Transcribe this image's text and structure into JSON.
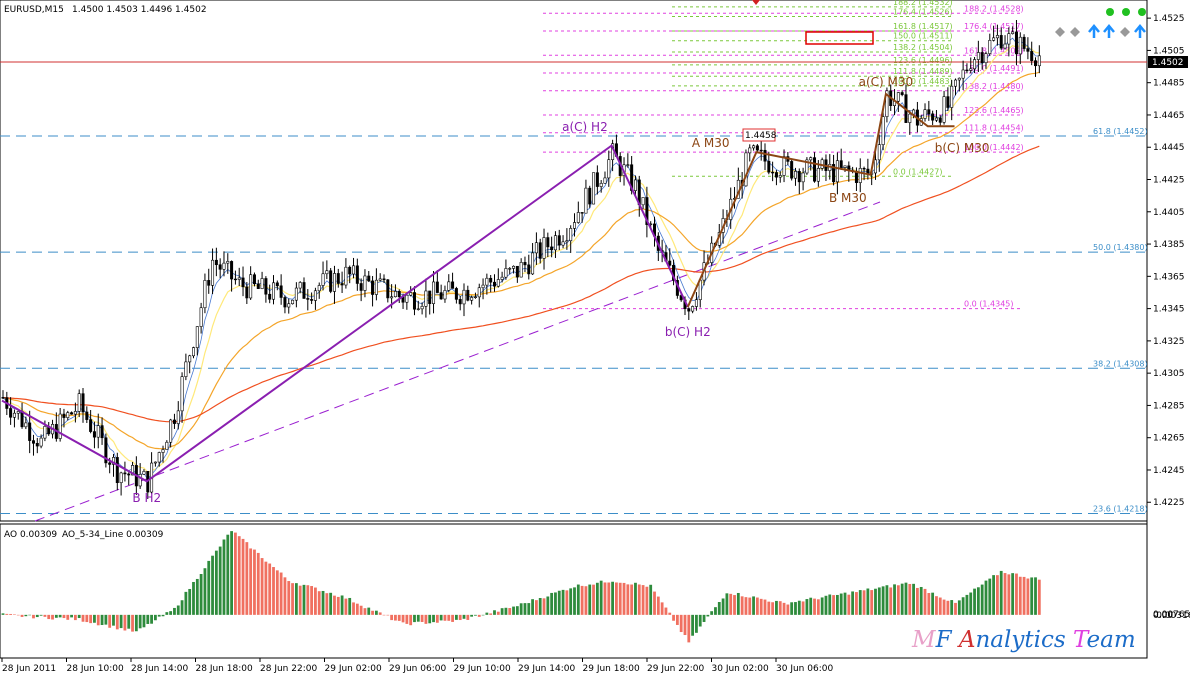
{
  "header": {
    "symbol_tf": "EURUSD,M15",
    "ohlc": "1.4500 1.4503 1.4496 1.4502",
    "ao_label": "AO 0.00309",
    "ao_line_label": "AO_5-34_Line 0.00309"
  },
  "brand": {
    "M": "M",
    "F": "F ",
    "A": "A",
    "nalytics": "nalytics ",
    "T": "T",
    "eam": "eam"
  },
  "colors": {
    "bull": "#2e8b3c",
    "bear": "#f07060",
    "fib_magenta": "#e040e0",
    "fib_green": "#7cc83c",
    "fib_blue": "#3c8ec8",
    "wave_h2": "#8a1fb0",
    "wave_m30": "#8b4513",
    "ma_fast": "#ffe97a",
    "ma_mid": "#f4a52a",
    "ma_slow": "#f05020",
    "price_line": "#d03030"
  },
  "current_price": "1.4502",
  "chart_data": {
    "type": "candlestick",
    "symbol": "EURUSD",
    "timeframe": "M15",
    "ylim": [
      1.4214,
      1.4535
    ],
    "y_ticks": [
      "1.4525",
      "1.4505",
      "1.4485",
      "1.4465",
      "1.4445",
      "1.4425",
      "1.4405",
      "1.4385",
      "1.4365",
      "1.4345",
      "1.4325",
      "1.4305",
      "1.4285",
      "1.4265",
      "1.4245",
      "1.4225"
    ],
    "x_ticks": [
      "28 Jun 2011",
      "28 Jun 10:00",
      "28 Jun 14:00",
      "28 Jun 18:00",
      "28 Jun 22:00",
      "29 Jun 02:00",
      "29 Jun 06:00",
      "29 Jun 10:00",
      "29 Jun 14:00",
      "29 Jun 18:00",
      "29 Jun 22:00",
      "30 Jun 02:00",
      "30 Jun 06:00"
    ],
    "price_path": [
      {
        "t": 0,
        "p": 1.429
      },
      {
        "t": 10,
        "p": 1.4262
      },
      {
        "t": 20,
        "p": 1.4285
      },
      {
        "t": 30,
        "p": 1.4245
      },
      {
        "t": 38,
        "p": 1.4238
      },
      {
        "t": 45,
        "p": 1.428
      },
      {
        "t": 55,
        "p": 1.4375
      },
      {
        "t": 62,
        "p": 1.436
      },
      {
        "t": 75,
        "p": 1.4352
      },
      {
        "t": 90,
        "p": 1.4366
      },
      {
        "t": 105,
        "p": 1.4352
      },
      {
        "t": 120,
        "p": 1.4355
      },
      {
        "t": 135,
        "p": 1.4368
      },
      {
        "t": 148,
        "p": 1.4395
      },
      {
        "t": 160,
        "p": 1.444
      },
      {
        "t": 166,
        "p": 1.442
      },
      {
        "t": 172,
        "p": 1.438
      },
      {
        "t": 180,
        "p": 1.4346
      },
      {
        "t": 188,
        "p": 1.439
      },
      {
        "t": 196,
        "p": 1.444
      },
      {
        "t": 206,
        "p": 1.4432
      },
      {
        "t": 218,
        "p": 1.443
      },
      {
        "t": 228,
        "p": 1.4428
      },
      {
        "t": 232,
        "p": 1.4478
      },
      {
        "t": 240,
        "p": 1.4462
      },
      {
        "t": 248,
        "p": 1.447
      },
      {
        "t": 254,
        "p": 1.45
      },
      {
        "t": 262,
        "p": 1.4514
      },
      {
        "t": 272,
        "p": 1.4502
      }
    ],
    "ao_path": [
      {
        "t": 0,
        "v": 0.0
      },
      {
        "t": 20,
        "v": -0.0004
      },
      {
        "t": 35,
        "v": -0.0015
      },
      {
        "t": 45,
        "v": 0.0005
      },
      {
        "t": 60,
        "v": 0.0074
      },
      {
        "t": 75,
        "v": 0.003
      },
      {
        "t": 90,
        "v": 0.0015
      },
      {
        "t": 105,
        "v": -0.0008
      },
      {
        "t": 120,
        "v": -0.0005
      },
      {
        "t": 135,
        "v": 0.0008
      },
      {
        "t": 150,
        "v": 0.0025
      },
      {
        "t": 160,
        "v": 0.003
      },
      {
        "t": 170,
        "v": 0.0025
      },
      {
        "t": 180,
        "v": -0.0024
      },
      {
        "t": 190,
        "v": 0.002
      },
      {
        "t": 205,
        "v": 0.001
      },
      {
        "t": 220,
        "v": 0.0018
      },
      {
        "t": 238,
        "v": 0.0028
      },
      {
        "t": 250,
        "v": 0.001
      },
      {
        "t": 262,
        "v": 0.0038
      },
      {
        "t": 272,
        "v": 0.0031
      }
    ],
    "ao_ylim": [
      -0.0036,
      0.0076
    ],
    "ao_ticks": [
      "0.00765",
      "0.00",
      "-0.00316"
    ],
    "fib_levels": [
      {
        "label": "188.2 (1.4532)",
        "price": 1.4532,
        "group": "green_small"
      },
      {
        "label": "176.4 (1.4526)",
        "price": 1.4526,
        "group": "green_small"
      },
      {
        "label": "161.8 (1.4517)",
        "price": 1.4517,
        "group": "green_small"
      },
      {
        "label": "150.0 (1.4511)",
        "price": 1.4511,
        "group": "green_small"
      },
      {
        "label": "138.2 (1.4504)",
        "price": 1.4504,
        "group": "green_small"
      },
      {
        "label": "123.6 (1.4496)",
        "price": 1.4496,
        "group": "green_small"
      },
      {
        "label": "111.8 (1.4489)",
        "price": 1.4489,
        "group": "green_small"
      },
      {
        "label": "100.0 (1.4483)",
        "price": 1.4483,
        "group": "green_small"
      },
      {
        "label": "0.0 (1.4427)",
        "price": 1.4427,
        "group": "green_small"
      },
      {
        "label": "188.2 (1.4528)",
        "price": 1.4528,
        "group": "magenta"
      },
      {
        "label": "176.4 (1.4517)",
        "price": 1.4517,
        "group": "magenta"
      },
      {
        "label": "161.8 (1.4502)",
        "price": 1.4502,
        "group": "magenta"
      },
      {
        "label": "150.0 (1.4491)",
        "price": 1.4491,
        "group": "magenta"
      },
      {
        "label": "138.2 (1.4480)",
        "price": 1.448,
        "group": "magenta"
      },
      {
        "label": "123.6 (1.4465)",
        "price": 1.4465,
        "group": "magenta"
      },
      {
        "label": "111.8 (1.4454)",
        "price": 1.4454,
        "group": "magenta"
      },
      {
        "label": "100.0 (1.4442)",
        "price": 1.4442,
        "group": "magenta"
      },
      {
        "label": "0.0 (1.4345)",
        "price": 1.4345,
        "group": "magenta"
      },
      {
        "label": "61.8 (1.4452)",
        "price": 1.4452,
        "group": "blue"
      },
      {
        "label": "50.0 (1.4380)",
        "price": 1.438,
        "group": "blue"
      },
      {
        "label": "38.2 (1.4308)",
        "price": 1.4308,
        "group": "blue"
      },
      {
        "label": "23.6 (1.4218)",
        "price": 1.4218,
        "group": "blue"
      }
    ],
    "wave_labels": [
      {
        "text": "a(C) H2",
        "t": 153,
        "price": 1.4455,
        "color": "wave_h2"
      },
      {
        "text": "B H2",
        "t": 38,
        "price": 1.4225,
        "color": "wave_h2"
      },
      {
        "text": "b(C) H2",
        "t": 180,
        "price": 1.4328,
        "color": "wave_h2"
      },
      {
        "text": "A M30",
        "t": 186,
        "price": 1.4445,
        "color": "wave_m30"
      },
      {
        "text": "a(C) M30",
        "t": 232,
        "price": 1.4483,
        "color": "wave_m30"
      },
      {
        "text": "b(C) M30",
        "t": 252,
        "price": 1.4442,
        "color": "wave_m30"
      },
      {
        "text": "B M30",
        "t": 222,
        "price": 1.4411,
        "color": "wave_m30"
      }
    ],
    "wave_h2_path": [
      {
        "t": 0,
        "p": 1.4288
      },
      {
        "t": 38,
        "p": 1.4238
      },
      {
        "t": 160,
        "p": 1.4446
      },
      {
        "t": 180,
        "p": 1.4346
      }
    ],
    "wave_m30_path": [
      {
        "t": 180,
        "p": 1.4346
      },
      {
        "t": 198,
        "p": 1.4442
      },
      {
        "t": 228,
        "p": 1.4428
      },
      {
        "t": 232,
        "p": 1.4478
      },
      {
        "t": 243,
        "p": 1.4458
      },
      {
        "t": 250,
        "p": 1.4458
      }
    ],
    "price_tag": "1.4458"
  }
}
